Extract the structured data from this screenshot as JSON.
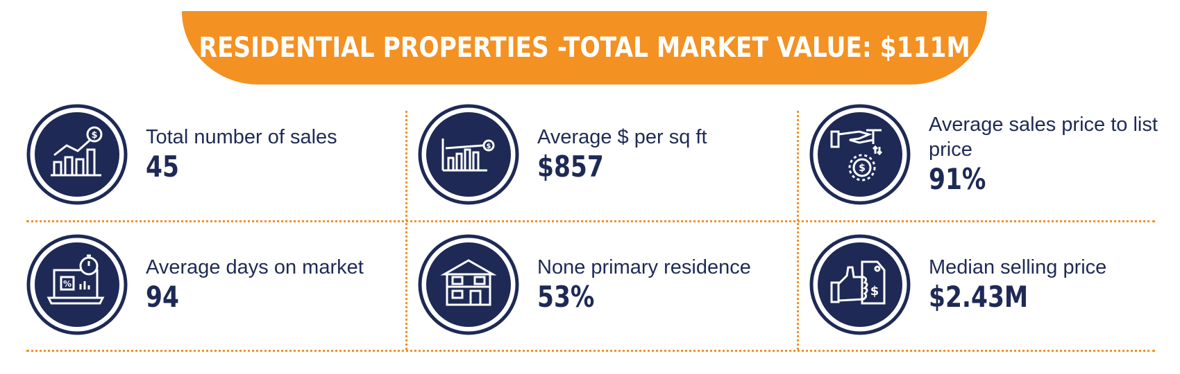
{
  "header": {
    "title": "RESIDENTIAL PROPERTIES -TOTAL MARKET VALUE: $111M"
  },
  "colors": {
    "accent": "#f39122",
    "navy": "#1e2a55",
    "white": "#ffffff"
  },
  "stats": [
    {
      "label": "Total number of sales",
      "value": "45",
      "icon": "bar-chart-dollar-icon"
    },
    {
      "label": "Average $ per sq ft",
      "value": "$857",
      "icon": "price-chart-icon"
    },
    {
      "label": "Average sales price to list price",
      "value": "91%",
      "icon": "hand-coin-exchange-icon"
    },
    {
      "label": "Average days on market",
      "value": "94",
      "icon": "laptop-stopwatch-icon"
    },
    {
      "label": "None primary residence",
      "value": "53%",
      "icon": "house-icon"
    },
    {
      "label": "Median selling price",
      "value": "$2.43M",
      "icon": "thumbs-up-price-tag-icon"
    }
  ]
}
